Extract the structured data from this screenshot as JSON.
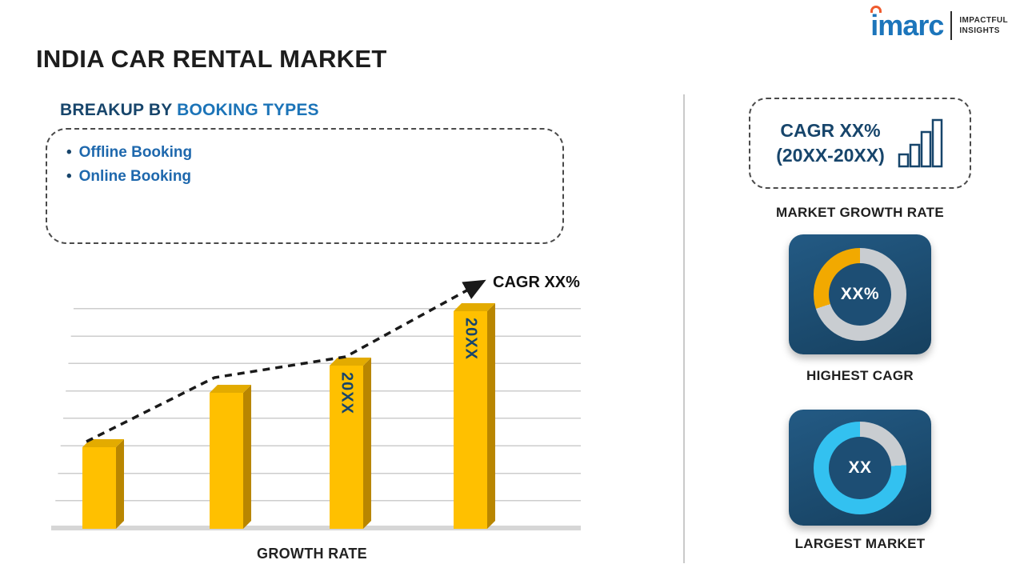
{
  "logo": {
    "brand": "imarc",
    "tagline_line1": "IMPACTFUL",
    "tagline_line2": "INSIGHTS"
  },
  "title": "INDIA CAR RENTAL MARKET",
  "breakup": {
    "heading_prefix": "BREAKUP BY ",
    "heading_highlight": "BOOKING TYPES",
    "items": [
      "Offline Booking",
      "Online Booking"
    ]
  },
  "chart_data": {
    "type": "bar",
    "title": "GROWTH RATE",
    "xlabel": "GROWTH RATE",
    "categories": [
      "",
      "",
      "20XX",
      "20XX"
    ],
    "values": [
      30,
      50,
      60,
      80
    ],
    "value_note": "axis unlabeled; relative heights estimated from pixels",
    "bar_color": "#FFC000",
    "gridlines": true,
    "trend": {
      "label": "CAGR XX%",
      "style": "dashed-arrow-up"
    }
  },
  "sidebar": {
    "cagr_box": {
      "line1": "CAGR XX%",
      "line2": "(20XX-20XX)"
    },
    "market_growth_rate_label": "MARKET GROWTH RATE",
    "highest_cagr": {
      "value": "XX%",
      "label": "HIGHEST CAGR",
      "accent": "#f2a900",
      "percent": 30
    },
    "largest_market": {
      "value": "XX",
      "label": "LARGEST MARKET",
      "accent": "#33c1f0",
      "percent": 76
    }
  },
  "colors": {
    "navy": "#17456b",
    "blue": "#1c74b8",
    "gold": "#ffc000",
    "donut_track": "#c9cdd1"
  }
}
